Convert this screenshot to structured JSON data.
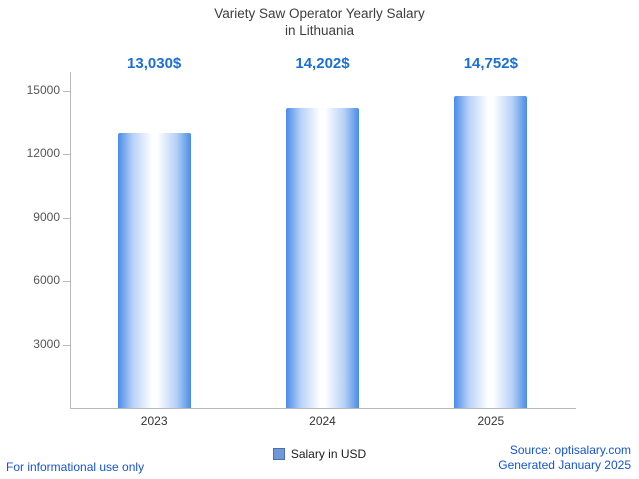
{
  "title": "Variety Saw Operator Yearly Salary",
  "subtitle": "in Lithuania",
  "chart_data": {
    "type": "bar",
    "title": "Variety Saw Operator Yearly Salary in Lithuania",
    "categories": [
      "2023",
      "2024",
      "2025"
    ],
    "values": [
      13030,
      14202,
      14752
    ],
    "value_labels": [
      "13,030$",
      "14,202$",
      "14,752$"
    ],
    "xlabel": "",
    "ylabel": "",
    "ylim": [
      0,
      15000
    ],
    "yticks": [
      3000,
      6000,
      9000,
      12000,
      15000
    ],
    "grid": false,
    "legend_position": "bottom",
    "legend": [
      "Salary in USD"
    ],
    "bar_edge_color": "#4a8ce8",
    "bar_center_color": "#ffffff"
  },
  "legend": {
    "label": "Salary in USD"
  },
  "footer": {
    "left": "For informational use only",
    "source": "Source: optisalary.com",
    "generated": "Generated January 2025"
  },
  "colors": {
    "value_label": "#1b6ed6",
    "footer_text": "#1553d8",
    "title_text": "#3d3d3d",
    "axis": "#b9b9b9"
  }
}
